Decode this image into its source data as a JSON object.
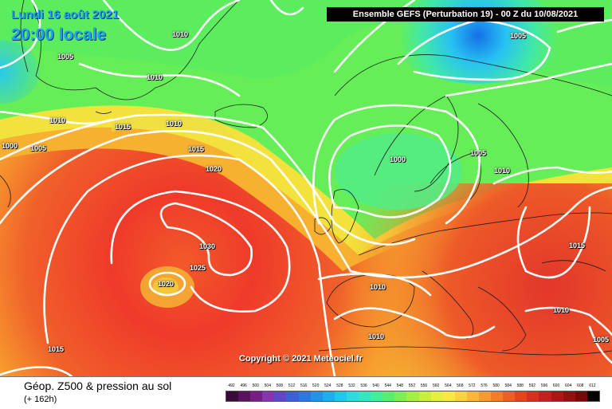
{
  "header": {
    "date": "Lundi 16 août 2021",
    "time": "20:00 locale",
    "model": "Ensemble GEFS  (Perturbation 19)  -  00 Z du 10/08/2021"
  },
  "map": {
    "isobar_labels": [
      "1010",
      "1005",
      "1010",
      "1010",
      "1015",
      "1010",
      "1000",
      "1005",
      "1015",
      "1020",
      "1030",
      "1025",
      "1020",
      "1015",
      "1005",
      "1000",
      "1005",
      "1010",
      "1010",
      "1010",
      "1015",
      "1010",
      "1005"
    ],
    "copyright": "Copyright © 2021 Meteociel.fr"
  },
  "footer": {
    "title": "Géop. Z500 & pression au sol",
    "subtitle": "(+ 162h)"
  },
  "legend": {
    "labels": [
      "492",
      "496",
      "500",
      "504",
      "508",
      "512",
      "516",
      "520",
      "524",
      "528",
      "532",
      "536",
      "540",
      "544",
      "548",
      "552",
      "556",
      "560",
      "564",
      "568",
      "572",
      "576",
      "580",
      "584",
      "588",
      "592",
      "596",
      "600",
      "604",
      "608",
      "612"
    ],
    "colors": [
      "#3a0a3a",
      "#5a1260",
      "#7a1c88",
      "#8a34b0",
      "#6046c8",
      "#3c5ed8",
      "#2a78e4",
      "#1e94ec",
      "#18b0f2",
      "#1ccaf0",
      "#28dce0",
      "#30e8c0",
      "#3ef09a",
      "#56f070",
      "#7cf050",
      "#a4f03c",
      "#c8f038",
      "#e6f03a",
      "#f8e840",
      "#fcd23c",
      "#fcb834",
      "#fa9a2c",
      "#f67c26",
      "#f05e20",
      "#e6421c",
      "#da2e1c",
      "#c81e1e",
      "#b01414",
      "#960e0e",
      "#7a0808",
      "#000000"
    ]
  }
}
